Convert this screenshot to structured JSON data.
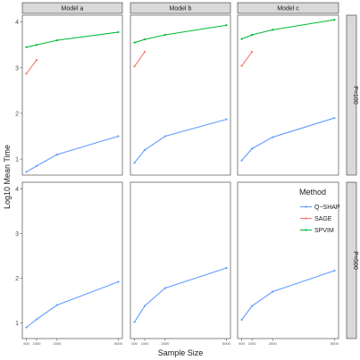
{
  "chart_data": {
    "type": "line",
    "xlabel": "Sample Size",
    "ylabel": "Log10  Mean Time",
    "x_ticks": [
      500,
      1000,
      2000,
      5000
    ],
    "x_tick_labels": [
      "500",
      "1000",
      "2000",
      "5000"
    ],
    "y_ticks": [
      1,
      2,
      3,
      4
    ],
    "ylim": [
      0.65,
      4.15
    ],
    "xlim": [
      300,
      5200
    ],
    "columns": [
      "Model a",
      "Model b",
      "Model c"
    ],
    "rows": [
      "P=100",
      "P=500"
    ],
    "legend": {
      "title": "Method",
      "position": "right, inside bottom-right panel",
      "entries": [
        "Q−SHAP",
        "SAGE",
        "SPVIM"
      ]
    },
    "colors": {
      "Q−SHAP": "#619CFF",
      "SAGE": "#F8766D",
      "SPVIM": "#00BA38"
    },
    "grid": false,
    "panels": [
      {
        "column": "Model a",
        "row": "P=100",
        "series": [
          {
            "name": "Q−SHAP",
            "x": [
              500,
              1000,
              2000,
              5000
            ],
            "y": [
              0.72,
              0.85,
              1.1,
              1.5
            ]
          },
          {
            "name": "SAGE",
            "x": [
              500,
              1000
            ],
            "y": [
              2.87,
              3.17
            ]
          },
          {
            "name": "SPVIM",
            "x": [
              500,
              1000,
              2000,
              5000
            ],
            "y": [
              3.45,
              3.5,
              3.6,
              3.78
            ]
          }
        ]
      },
      {
        "column": "Model b",
        "row": "P=100",
        "series": [
          {
            "name": "Q−SHAP",
            "x": [
              500,
              1000,
              2000,
              5000
            ],
            "y": [
              0.92,
              1.2,
              1.5,
              1.87
            ]
          },
          {
            "name": "SAGE",
            "x": [
              500,
              1000
            ],
            "y": [
              3.03,
              3.35
            ]
          },
          {
            "name": "SPVIM",
            "x": [
              500,
              1000,
              2000,
              5000
            ],
            "y": [
              3.55,
              3.62,
              3.72,
              3.93
            ]
          }
        ]
      },
      {
        "column": "Model c",
        "row": "P=100",
        "series": [
          {
            "name": "Q−SHAP",
            "x": [
              500,
              1000,
              2000,
              5000
            ],
            "y": [
              0.97,
              1.23,
              1.48,
              1.9
            ]
          },
          {
            "name": "SAGE",
            "x": [
              500,
              1000
            ],
            "y": [
              3.04,
              3.35
            ]
          },
          {
            "name": "SPVIM",
            "x": [
              500,
              1000,
              2000,
              5000
            ],
            "y": [
              3.63,
              3.72,
              3.83,
              4.05
            ]
          }
        ]
      },
      {
        "column": "Model a",
        "row": "P=500",
        "series": [
          {
            "name": "Q−SHAP",
            "x": [
              500,
              1000,
              2000,
              5000
            ],
            "y": [
              0.9,
              1.08,
              1.4,
              1.92
            ]
          }
        ]
      },
      {
        "column": "Model b",
        "row": "P=500",
        "series": [
          {
            "name": "Q−SHAP",
            "x": [
              500,
              1000,
              2000,
              5000
            ],
            "y": [
              1.02,
              1.38,
              1.78,
              2.23
            ]
          }
        ]
      },
      {
        "column": "Model c",
        "row": "P=500",
        "series": [
          {
            "name": "Q−SHAP",
            "x": [
              500,
              1000,
              2000,
              5000
            ],
            "y": [
              1.07,
              1.38,
              1.7,
              2.17
            ]
          }
        ]
      }
    ]
  }
}
